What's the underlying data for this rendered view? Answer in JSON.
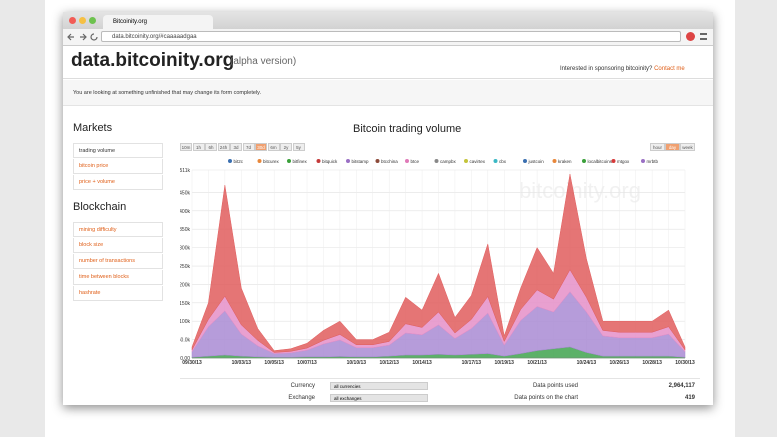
{
  "browser": {
    "tab": "Bitcoinity.org",
    "url": "data.bitcoinity.org/#caaaaadgaa"
  },
  "header": {
    "title": "data.bitcoinity.org",
    "subtitle": "(alpha version)",
    "sponsor": "Interested in sponsoring bitcoinity?",
    "contact": "Contact me"
  },
  "notice": "You are looking at something unfinished that may change its form completely.",
  "sidebar": [
    {
      "title": "Markets",
      "items": [
        "trading volume",
        "bitcoin price",
        "price + volume"
      ],
      "active": 0
    },
    {
      "title": "Blockchain",
      "items": [
        "mining difficulty",
        "block size",
        "number of transactions",
        "time between blocks",
        "hashrate"
      ]
    }
  ],
  "controls": {
    "ranges": [
      "10m",
      "1h",
      "6h",
      "24h",
      "3d",
      "7d",
      "30d",
      "6m",
      "2y",
      "5y"
    ],
    "active_range": 6,
    "resolutions": [
      "hour",
      "day",
      "week"
    ],
    "active_resolution": 1
  },
  "chart_data": {
    "type": "stacked_area",
    "title": "Bitcoin trading volume",
    "watermark": "bitcoinity.org",
    "legend": [
      {
        "name": "bit2c",
        "color": "#3a6fb0"
      },
      {
        "name": "bitcurex",
        "color": "#e8873a"
      },
      {
        "name": "bitfinex",
        "color": "#3aa03a"
      },
      {
        "name": "bitquick",
        "color": "#c43a3a"
      },
      {
        "name": "bitstamp",
        "color": "#9a6fc4"
      },
      {
        "name": "btcchina",
        "color": "#8c4a3a"
      },
      {
        "name": "btce",
        "color": "#e07ab8"
      },
      {
        "name": "campbx",
        "color": "#888888"
      },
      {
        "name": "cavirtex",
        "color": "#c4c43a"
      },
      {
        "name": "cbx",
        "color": "#3ab8c4"
      },
      {
        "name": "justcoin",
        "color": "#3a6fb0"
      },
      {
        "name": "kraken",
        "color": "#e8873a"
      },
      {
        "name": "localbitcoins",
        "color": "#3aa03a"
      },
      {
        "name": "mtgox",
        "color": "#d63a3a"
      },
      {
        "name": "mrbtb",
        "color": "#9a6fc4"
      }
    ],
    "categories": [
      "09/30/13",
      null,
      null,
      "10/03/13",
      null,
      "10/05/13",
      null,
      "10/07/13",
      null,
      null,
      "10/10/13",
      null,
      "10/12/13",
      null,
      "10/14/13",
      null,
      null,
      "10/17/13",
      null,
      "10/19/13",
      null,
      "10/21/13",
      null,
      null,
      "10/24/13",
      null,
      "10/26/13",
      null,
      "10/28/13",
      null,
      "10/30/13"
    ],
    "series": [
      {
        "name": "localbitcoins",
        "color": "#3fa34d",
        "values": [
          2000,
          5000,
          8000,
          5000,
          3000,
          2000,
          2000,
          3000,
          3000,
          4000,
          3000,
          3000,
          5000,
          8000,
          8000,
          10000,
          8000,
          10000,
          12000,
          5000,
          12000,
          20000,
          25000,
          30000,
          15000,
          5000,
          5000,
          5000,
          5000,
          5000,
          2000
        ]
      },
      {
        "name": "bitstamp",
        "color": "#a98bd3",
        "values": [
          15000,
          80000,
          120000,
          60000,
          30000,
          10000,
          12000,
          18000,
          35000,
          45000,
          25000,
          25000,
          30000,
          60000,
          55000,
          80000,
          45000,
          70000,
          110000,
          30000,
          90000,
          120000,
          100000,
          150000,
          110000,
          55000,
          50000,
          50000,
          50000,
          60000,
          15000
        ]
      },
      {
        "name": "btce",
        "color": "#e58fc8",
        "values": [
          5000,
          20000,
          40000,
          25000,
          15000,
          3000,
          4000,
          6000,
          10000,
          15000,
          8000,
          8000,
          10000,
          25000,
          20000,
          35000,
          15000,
          25000,
          45000,
          10000,
          30000,
          45000,
          35000,
          60000,
          40000,
          15000,
          15000,
          15000,
          15000,
          20000,
          5000
        ]
      },
      {
        "name": "btcchina",
        "color": "#e15d5d",
        "values": [
          8000,
          45000,
          302000,
          100000,
          32000,
          5000,
          7000,
          13000,
          27000,
          36000,
          14000,
          14000,
          25000,
          72000,
          47000,
          105000,
          42000,
          65000,
          143000,
          15000,
          58000,
          115000,
          70000,
          260000,
          105000,
          25000,
          30000,
          30000,
          30000,
          45000,
          8000
        ]
      }
    ],
    "ylim": [
      0,
      511000
    ],
    "yticks": [
      {
        "value": 0,
        "label": "0.00"
      },
      {
        "value": 50000,
        "label": "50.0k"
      },
      {
        "value": 100000,
        "label": "100k"
      },
      {
        "value": 150000,
        "label": "150k"
      },
      {
        "value": 200000,
        "label": "200k"
      },
      {
        "value": 250000,
        "label": "250k"
      },
      {
        "value": 300000,
        "label": "300k"
      },
      {
        "value": 350000,
        "label": "350k"
      },
      {
        "value": 400000,
        "label": "400k"
      },
      {
        "value": 450000,
        "label": "450k"
      },
      {
        "value": 511000,
        "label": "511k"
      }
    ],
    "grid": true
  },
  "stats": {
    "left": [
      {
        "label": "Currency",
        "select": "all currencies"
      },
      {
        "label": "Exchange",
        "select": "all exchanges"
      }
    ],
    "right": [
      {
        "label": "Data points used",
        "value": "2,964,117"
      },
      {
        "label": "Data points on the chart",
        "value": "419"
      }
    ]
  }
}
